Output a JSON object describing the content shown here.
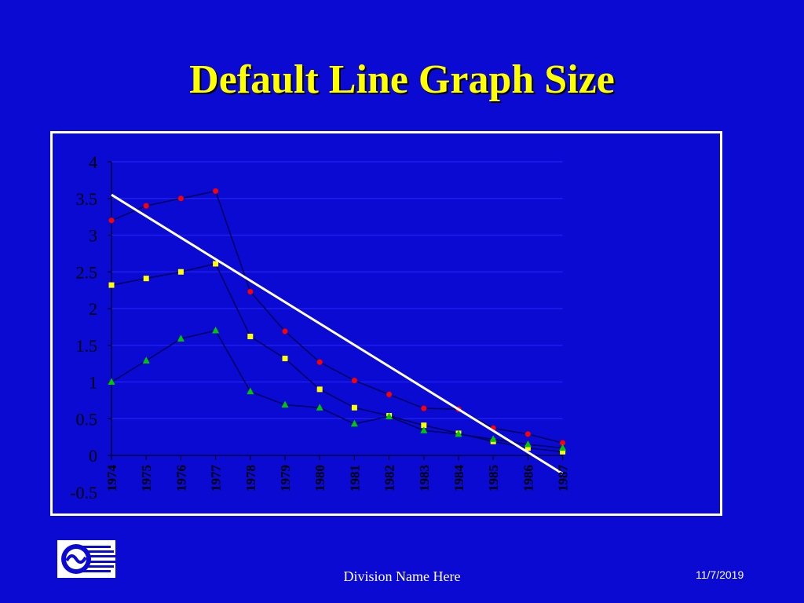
{
  "slide": {
    "title": "Default Line Graph Size",
    "footer": "Division Name Here",
    "date": "11/7/2019"
  },
  "colors": {
    "background": "#0a0ad2",
    "title": "#ffff00",
    "frame": "#ffffff",
    "gridline": "#1e1ef0",
    "series_line": "#00005a",
    "trendline": "#ffffff"
  },
  "chart_data": {
    "type": "line",
    "title": "",
    "xlabel": "",
    "ylabel": "",
    "categories": [
      "1974",
      "1975",
      "1976",
      "1977",
      "1978",
      "1979",
      "1980",
      "1981",
      "1982",
      "1983",
      "1984",
      "1985",
      "1986",
      "1987"
    ],
    "ylim": [
      -0.5,
      4
    ],
    "yticks": [
      "-0.5",
      "0",
      "0.5",
      "1",
      "1.5",
      "2",
      "2.5",
      "3",
      "3.5",
      "4"
    ],
    "grid": true,
    "legend": "none",
    "series": [
      {
        "marker": "circle",
        "color": "#ff0000",
        "values": [
          3.2,
          3.4,
          3.5,
          3.6,
          2.23,
          1.69,
          1.27,
          1.02,
          0.83,
          0.64,
          0.63,
          0.37,
          0.29,
          0.17
        ]
      },
      {
        "marker": "square",
        "color": "#ffff00",
        "values": [
          2.32,
          2.41,
          2.5,
          2.61,
          1.62,
          1.32,
          0.9,
          0.65,
          0.54,
          0.41,
          0.3,
          0.19,
          0.1,
          0.05
        ]
      },
      {
        "marker": "triangle",
        "color": "#00c800",
        "values": [
          1.0,
          1.29,
          1.59,
          1.7,
          0.87,
          0.69,
          0.65,
          0.43,
          0.53,
          0.34,
          0.29,
          0.22,
          0.15,
          0.1
        ]
      }
    ],
    "trendline": {
      "color": "#ffffff",
      "start": 3.55,
      "end": -0.25
    }
  }
}
